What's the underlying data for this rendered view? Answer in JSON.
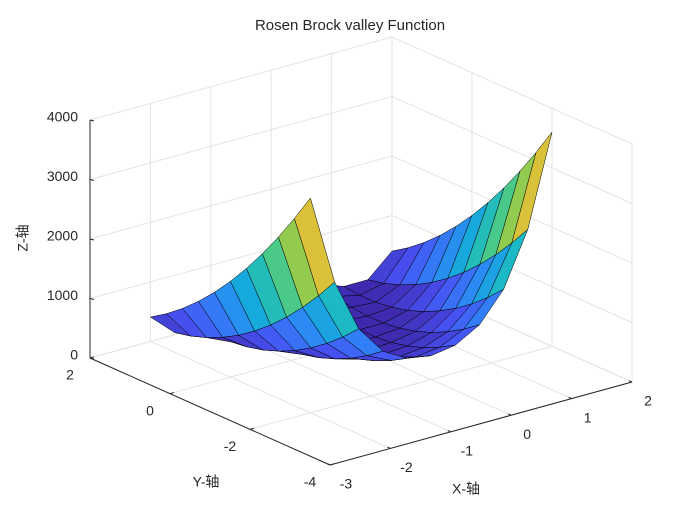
{
  "chart_data": {
    "type": "surface",
    "title": "Rosen Brock valley Function",
    "xlabel": "X-轴",
    "ylabel": "Y-轴",
    "zlabel": "Z-轴",
    "colormap": "parula",
    "edge_color": "#000000",
    "x": [
      -2,
      -1.6,
      -1.2,
      -0.8,
      -0.4,
      0,
      0.4,
      0.8,
      1.2,
      1.6,
      2
    ],
    "y": [
      -2,
      -1.6,
      -1.2,
      -0.8,
      -0.4,
      0,
      0.4,
      0.8,
      1.2,
      1.6,
      2
    ],
    "z": [
      [
        3609,
        2086,
        1188,
        700,
        469,
        401,
        467,
        697,
        1183,
        2080,
        3601
      ],
      [
        3145,
        1737,
        929,
        505,
        312,
        257,
        310,
        502,
        924,
        1731,
        3137
      ],
      [
        2713,
        1421,
        702,
        342,
        187,
        145,
        185,
        339,
        697,
        1414,
        2705
      ],
      [
        2313,
        1136,
        507,
        211,
        94,
        65,
        92,
        207,
        502,
        1129,
        2305
      ],
      [
        1945,
        883,
        343,
        111,
        33,
        17,
        32,
        108,
        339,
        877,
        1937
      ],
      [
        1609,
        662,
        212,
        44,
        5,
        1,
        3,
        41,
        207,
        656,
        1601
      ],
      [
        1305,
        473,
        113,
        9,
        8,
        17,
        6,
        6,
        108,
        467,
        1297
      ],
      [
        1033,
        317,
        46,
        6,
        43,
        65,
        41,
        3,
        41,
        310,
        1025
      ],
      [
        793,
        192,
        11,
        35,
        110,
        145,
        109,
        31,
        6,
        185,
        785
      ],
      [
        585,
        99,
        7,
        95,
        209,
        257,
        208,
        92,
        3,
        92,
        577
      ],
      [
        409,
        38,
        36,
        188,
        341,
        401,
        339,
        185,
        31,
        32,
        401
      ]
    ],
    "xlim": [
      -3,
      2
    ],
    "ylim": [
      -4,
      2
    ],
    "zlim": [
      0,
      4000
    ],
    "xticks": [
      -3,
      -2,
      -1,
      0,
      1,
      2
    ],
    "yticks": [
      -4,
      -2,
      0,
      2
    ],
    "zticks": [
      0,
      1000,
      2000,
      3000,
      4000
    ],
    "grid": true
  }
}
